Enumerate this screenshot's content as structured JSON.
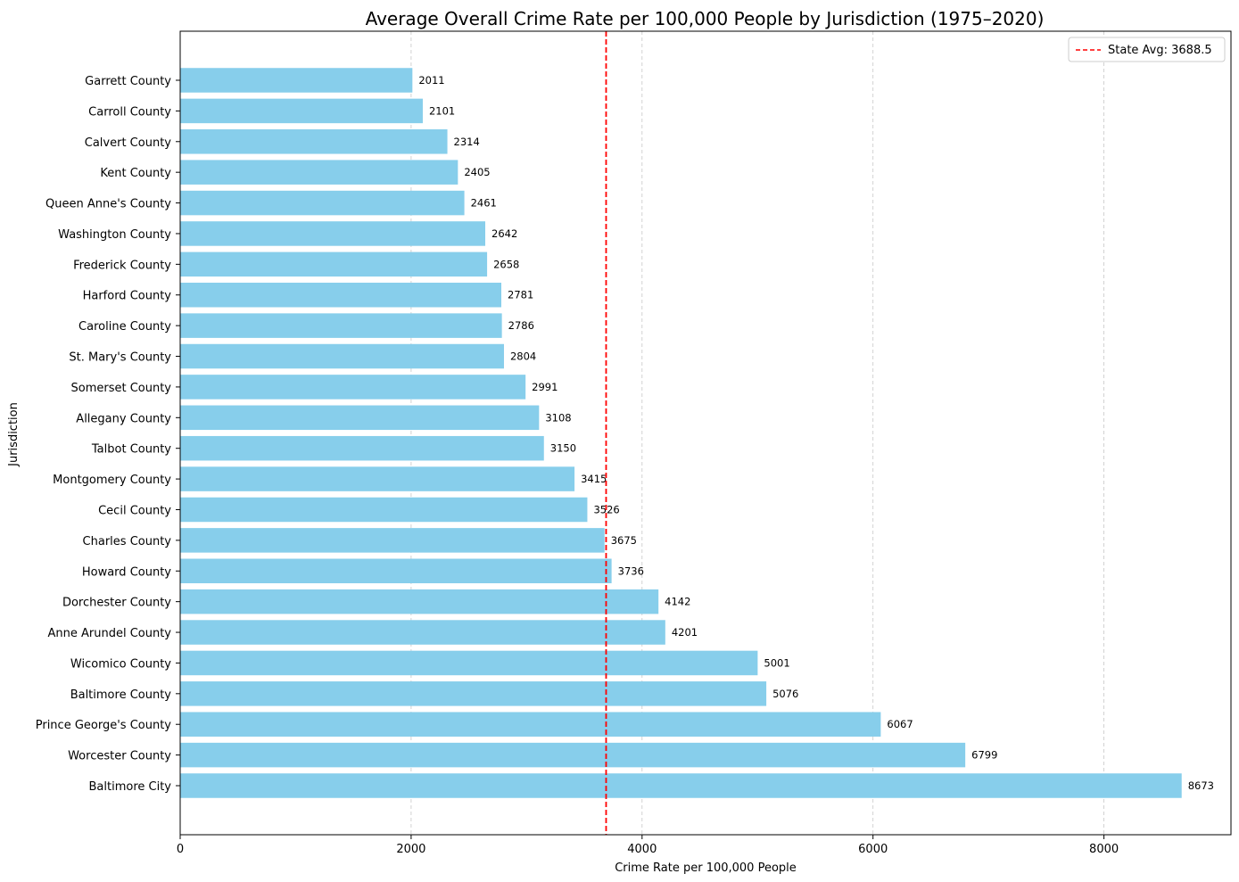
{
  "chart_data": {
    "type": "bar",
    "orientation": "horizontal",
    "title": "Average Overall Crime Rate per 100,000 People by Jurisdiction (1975–2020)",
    "xlabel": "Crime Rate per 100,000 People",
    "ylabel": "Jurisdiction",
    "xlim": [
      0,
      9100
    ],
    "xticks": [
      0,
      2000,
      4000,
      6000,
      8000
    ],
    "grid": "x-dashed",
    "bar_color": "#87ceeb",
    "categories": [
      "Garrett County",
      "Carroll County",
      "Calvert County",
      "Kent County",
      "Queen Anne's County",
      "Washington County",
      "Frederick County",
      "Harford County",
      "Caroline County",
      "St. Mary's County",
      "Somerset County",
      "Allegany County",
      "Talbot County",
      "Montgomery County",
      "Cecil County",
      "Charles County",
      "Howard County",
      "Dorchester County",
      "Anne Arundel County",
      "Wicomico County",
      "Baltimore County",
      "Prince George's County",
      "Worcester County",
      "Baltimore City"
    ],
    "values": [
      2011,
      2101,
      2314,
      2405,
      2461,
      2642,
      2658,
      2781,
      2786,
      2804,
      2991,
      3108,
      3150,
      3415,
      3526,
      3675,
      3736,
      4142,
      4201,
      5001,
      5076,
      6067,
      6799,
      8673
    ],
    "reference_line": {
      "value": 3688.5,
      "label": "State Avg: 3688.5",
      "color": "#ff0000",
      "style": "dashed"
    },
    "legend": {
      "position": "top-right"
    }
  }
}
